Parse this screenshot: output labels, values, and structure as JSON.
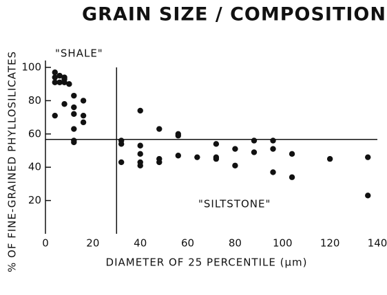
{
  "chart_data": {
    "type": "scatter",
    "title": "GRAIN SIZE / COMPOSITION",
    "xlabel": "DIAMETER OF 25 PERCENTILE (μm)",
    "ylabel": "% OF FINE-GRAINED PHYLLOSILICATES",
    "annotations": [
      "\"SHALE\"",
      "\"SILTSTONE\""
    ],
    "reference_lines": {
      "x": 30,
      "y": 56.7
    },
    "color": "#111111",
    "x": [
      4,
      4,
      4,
      4,
      6,
      6,
      8,
      8,
      8,
      8,
      10,
      12,
      12,
      12,
      12,
      12,
      12,
      16,
      16,
      16,
      32,
      32,
      32,
      40,
      40,
      40,
      40,
      40,
      48,
      48,
      48,
      56,
      56,
      56,
      64,
      72,
      72,
      72,
      80,
      80,
      88,
      88,
      96,
      96,
      96,
      104,
      104,
      120,
      136,
      136
    ],
    "values": [
      97,
      94,
      91,
      71,
      95,
      91,
      94,
      93,
      91,
      78,
      90,
      83,
      76,
      72,
      63,
      56,
      55,
      80,
      71,
      67,
      56,
      54,
      43,
      74,
      53,
      48,
      43,
      41,
      63,
      45,
      43,
      60,
      59,
      47,
      46,
      54,
      46,
      45,
      51,
      41,
      56,
      49,
      56,
      51,
      37,
      48,
      34,
      45,
      46,
      23
    ],
    "xlim": [
      0,
      140
    ],
    "ylim": [
      0,
      100
    ],
    "xticks": [
      0,
      20,
      40,
      60,
      80,
      100,
      120,
      140
    ],
    "yticks": [
      20,
      40,
      60,
      80,
      100
    ]
  }
}
